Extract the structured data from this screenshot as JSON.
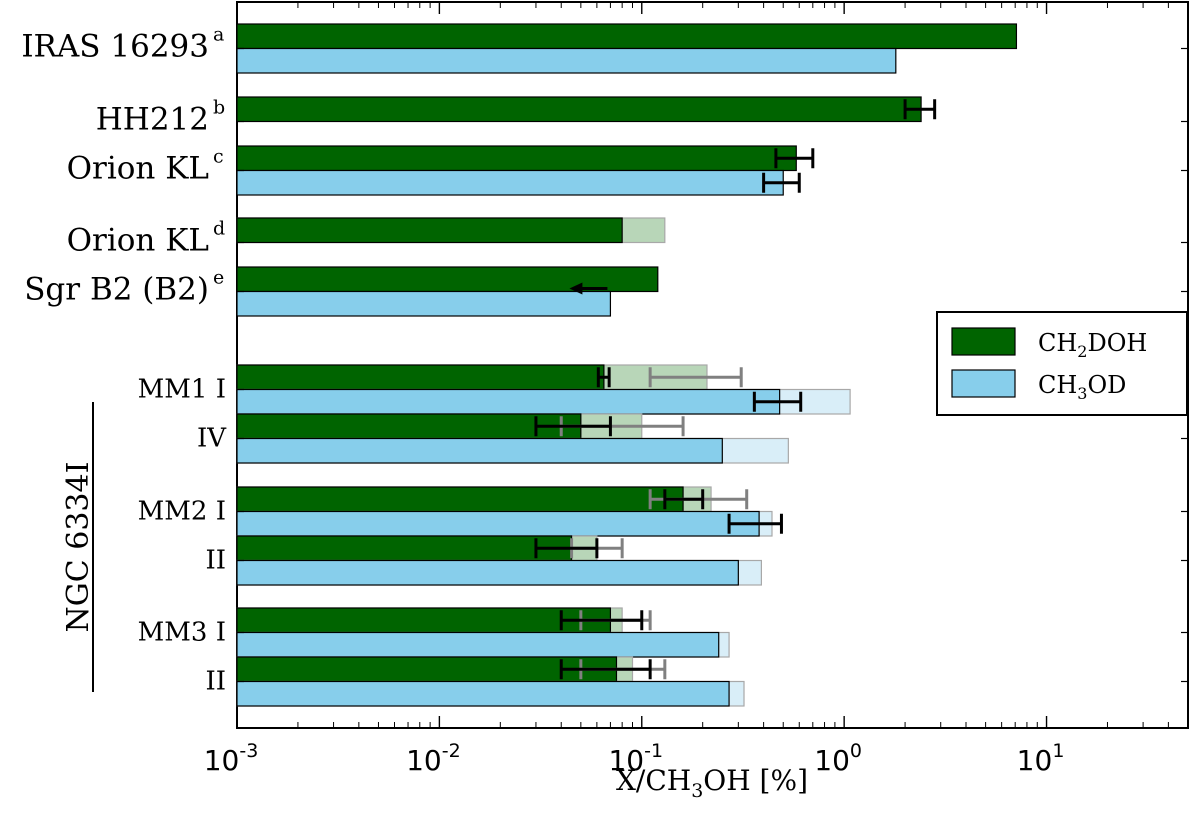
{
  "chart_data": {
    "type": "bar",
    "orientation": "horizontal",
    "x_scale": "log",
    "xlim": [
      0.001,
      50
    ],
    "xlabel": {
      "main": "X/CH",
      "sub": "3",
      "rest": "OH [%]"
    },
    "xticks": [
      {
        "value": 0.001,
        "base": "10",
        "exp": "-3"
      },
      {
        "value": 0.01,
        "base": "10",
        "exp": "-2"
      },
      {
        "value": 0.1,
        "base": "10",
        "exp": "-1"
      },
      {
        "value": 1,
        "base": "10",
        "exp": "0"
      },
      {
        "value": 10,
        "base": "10",
        "exp": "1"
      }
    ],
    "group_label": "NGC 6334I",
    "legend": {
      "position": "right-middle",
      "entries": [
        {
          "series": "ch2doh",
          "main": "CH",
          "sub": "2",
          "rest": "DOH"
        },
        {
          "series": "ch3od",
          "main": "CH",
          "sub": "3",
          "rest": "OD"
        }
      ]
    },
    "colors": {
      "ch2doh": "#006400",
      "ch2doh_light": "#b8d6b8",
      "ch3od": "#87ceeb",
      "ch3od_light": "#d9eef8",
      "errbar": "#000000",
      "errbar_light": "#808080"
    },
    "rows": [
      {
        "label": "IRAS 16293",
        "sup": "a",
        "label_size": "large",
        "ch2doh": {
          "value": 7.1
        },
        "ch3od": {
          "value": 1.8
        }
      },
      {
        "label": "HH212",
        "sup": "b",
        "label_size": "large",
        "ch2doh": {
          "value": 2.4,
          "err": [
            2.0,
            2.8
          ]
        }
      },
      {
        "label": "Orion KL",
        "sup": "c",
        "label_size": "large",
        "ch2doh": {
          "value": 0.58,
          "err": [
            0.46,
            0.7
          ]
        },
        "ch3od": {
          "value": 0.5,
          "err": [
            0.4,
            0.6
          ]
        }
      },
      {
        "label": "Orion KL",
        "sup": "d",
        "label_size": "large",
        "ch2doh": {
          "value": 0.08,
          "light": 0.13
        }
      },
      {
        "label": "Sgr B2 (B2)",
        "sup": "e",
        "label_size": "large",
        "ch2doh": {
          "value": 0.12
        },
        "ch3od": {
          "value": 0.07,
          "upper_limit": true
        }
      },
      {
        "label": "MM1 I",
        "sup": "",
        "label_size": "small",
        "ch2doh": {
          "value": 0.065,
          "err": [
            0.061,
            0.069
          ],
          "light": 0.21,
          "light_err": [
            0.11,
            0.31
          ]
        },
        "ch3od": {
          "value": 0.48,
          "err": [
            0.36,
            0.61
          ],
          "light": 1.07
        }
      },
      {
        "label": "IV",
        "sup": "",
        "label_size": "small",
        "ch2doh": {
          "value": 0.05,
          "err": [
            0.03,
            0.07
          ],
          "light": 0.1,
          "light_err": [
            0.04,
            0.16
          ]
        },
        "ch3od": {
          "value": 0.25,
          "light": 0.53
        }
      },
      {
        "label": "MM2 I",
        "sup": "",
        "label_size": "small",
        "ch2doh": {
          "value": 0.16,
          "err": [
            0.13,
            0.2
          ],
          "light": 0.22,
          "light_err": [
            0.11,
            0.33
          ]
        },
        "ch3od": {
          "value": 0.38,
          "err": [
            0.27,
            0.49
          ],
          "light": 0.44
        }
      },
      {
        "label": "II",
        "sup": "",
        "label_size": "small",
        "ch2doh": {
          "value": 0.045,
          "err": [
            0.03,
            0.06
          ],
          "light": 0.06,
          "light_err": [
            0.045,
            0.08
          ]
        },
        "ch3od": {
          "value": 0.3,
          "light": 0.39
        }
      },
      {
        "label": "MM3 I",
        "sup": "",
        "label_size": "small",
        "ch2doh": {
          "value": 0.07,
          "err": [
            0.04,
            0.1
          ],
          "light": 0.08,
          "light_err": [
            0.05,
            0.11
          ]
        },
        "ch3od": {
          "value": 0.24,
          "light": 0.27
        }
      },
      {
        "label": "II",
        "sup": "",
        "label_size": "small",
        "ch2doh": {
          "value": 0.075,
          "err": [
            0.04,
            0.11
          ],
          "light": 0.09,
          "light_err": [
            0.05,
            0.13
          ]
        },
        "ch3od": {
          "value": 0.27,
          "light": 0.32
        }
      }
    ]
  }
}
